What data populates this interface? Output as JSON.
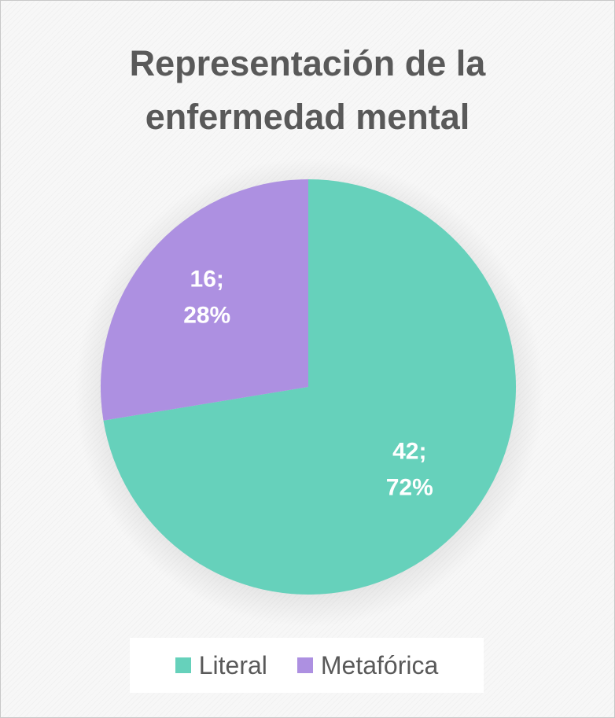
{
  "chart_data": {
    "type": "pie",
    "title": "Representación de la enfermedad mental",
    "title_lines": [
      "Representación de la",
      "enfermedad mental"
    ],
    "slices": [
      {
        "name": "Literal",
        "value": 42,
        "percent": "72%",
        "color": "#66d1bb",
        "data_label_lines": [
          "42;",
          "72%"
        ]
      },
      {
        "name": "Metafórica",
        "value": 16,
        "percent": "28%",
        "color": "#ad90e1",
        "data_label_lines": [
          "16;",
          "28%"
        ]
      }
    ],
    "start_angle_deg": 0,
    "direction": "clockwise",
    "legend_position": "bottom"
  }
}
